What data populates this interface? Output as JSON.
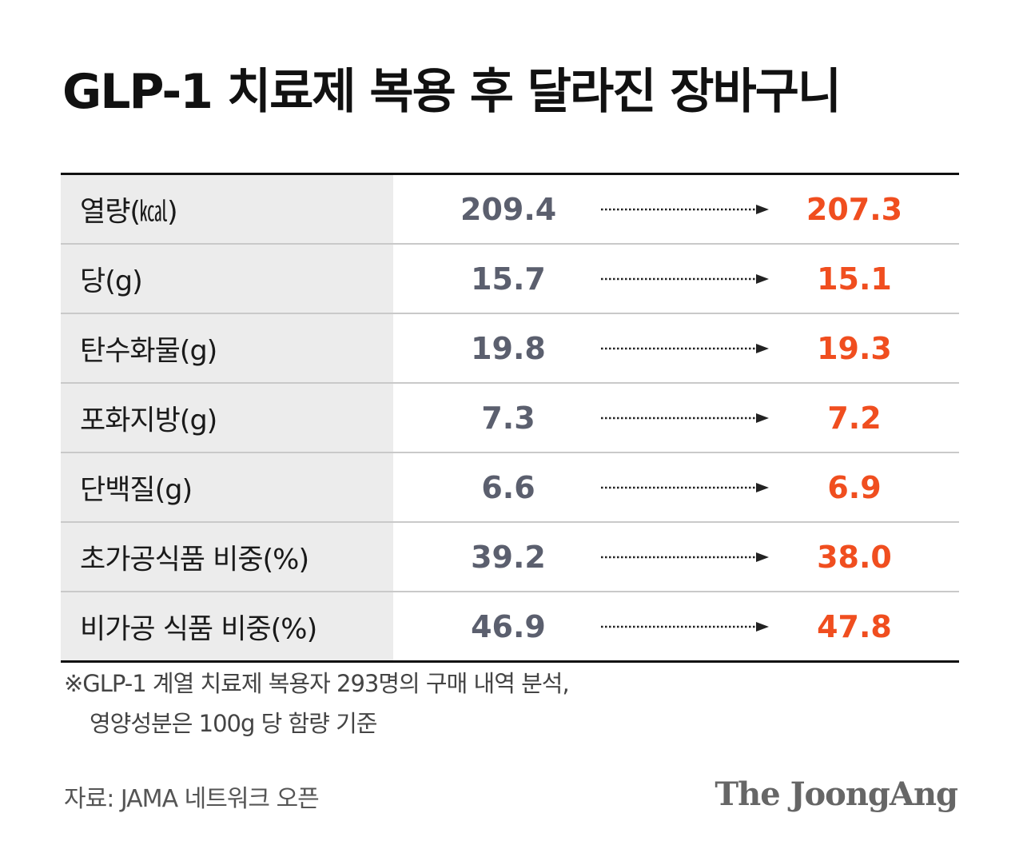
{
  "title": "GLP-1 치료제 복용 후 달라진 장바구니",
  "rows": [
    {
      "label": "열량(㎉)",
      "before": "209.4",
      "after": "207.3"
    },
    {
      "label": "당(g)",
      "before": "15.7",
      "after": "15.1"
    },
    {
      "label": "탄수화물(g)",
      "before": "19.8",
      "after": "19.3"
    },
    {
      "label": "포화지방(g)",
      "before": "7.3",
      "after": "7.2"
    },
    {
      "label": "단백질(g)",
      "before": "6.6",
      "after": "6.9"
    },
    {
      "label": "초가공식품 비중(%)",
      "before": "39.2",
      "after": "38.0"
    },
    {
      "label": "비가공 식품 비중(%)",
      "before": "46.9",
      "after": "47.8"
    }
  ],
  "note": {
    "line1": "※GLP-1 계열 치료제 복용자 293명의 구매 내역 분석,",
    "line2": "영양성분은 100g 당 함량 기준"
  },
  "source": "자료: JAMA 네트워크 오픈",
  "logo": "The JoongAng",
  "colors": {
    "before_value": "#5b5f6e",
    "after_value": "#f04e1f",
    "label_background": "#ececec"
  },
  "icons": {
    "arrow": "dotted-right-arrow-icon"
  }
}
